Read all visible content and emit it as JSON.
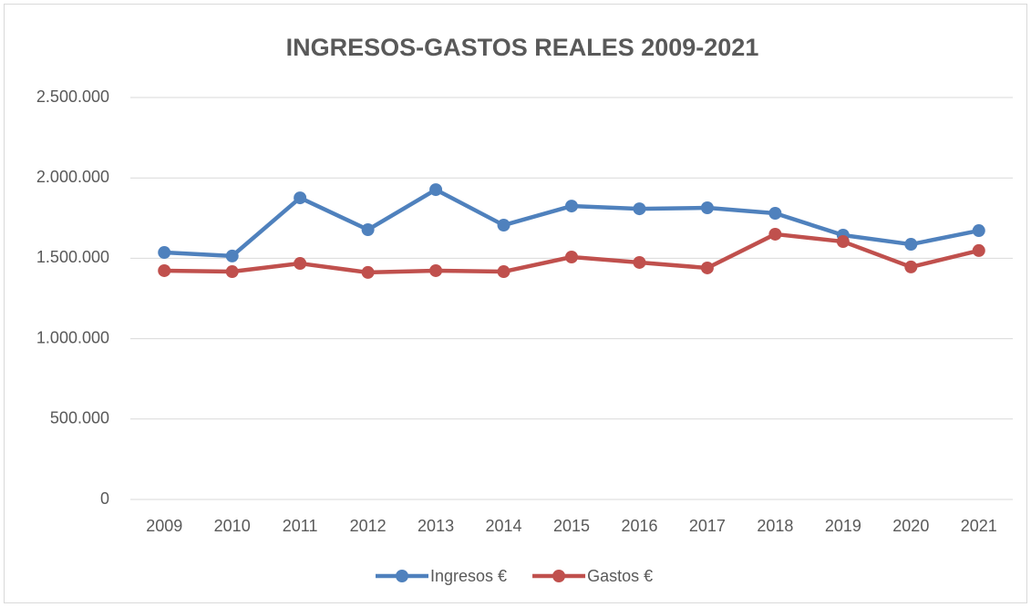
{
  "chart_data": {
    "type": "line",
    "title": "INGRESOS-GASTOS REALES 2009-2021",
    "categories": [
      "2009",
      "2010",
      "2011",
      "2012",
      "2013",
      "2014",
      "2015",
      "2016",
      "2017",
      "2018",
      "2019",
      "2020",
      "2021"
    ],
    "series": [
      {
        "name": "Ingresos €",
        "color": "#4f81bd",
        "values": [
          1536000,
          1514000,
          1876000,
          1678000,
          1927000,
          1706000,
          1825000,
          1808000,
          1814000,
          1780000,
          1644000,
          1587000,
          1672000
        ]
      },
      {
        "name": "Gastos €",
        "color": "#c0504d",
        "values": [
          1423000,
          1417000,
          1468000,
          1412000,
          1423000,
          1417000,
          1508000,
          1474000,
          1440000,
          1650000,
          1604000,
          1446000,
          1548000
        ]
      }
    ],
    "ylim": [
      0,
      2500000
    ],
    "yticks": [
      0,
      {
        "value": 500000,
        "label": "500.000"
      },
      {
        "value": 1000000,
        "label": "1.000.000"
      },
      {
        "value": 1500000,
        "label": "1.500.000"
      },
      {
        "value": 2000000,
        "label": "2.000.000"
      },
      {
        "value": 2500000,
        "label": "2.500.000"
      }
    ],
    "grid": true,
    "legend": "bottom"
  }
}
